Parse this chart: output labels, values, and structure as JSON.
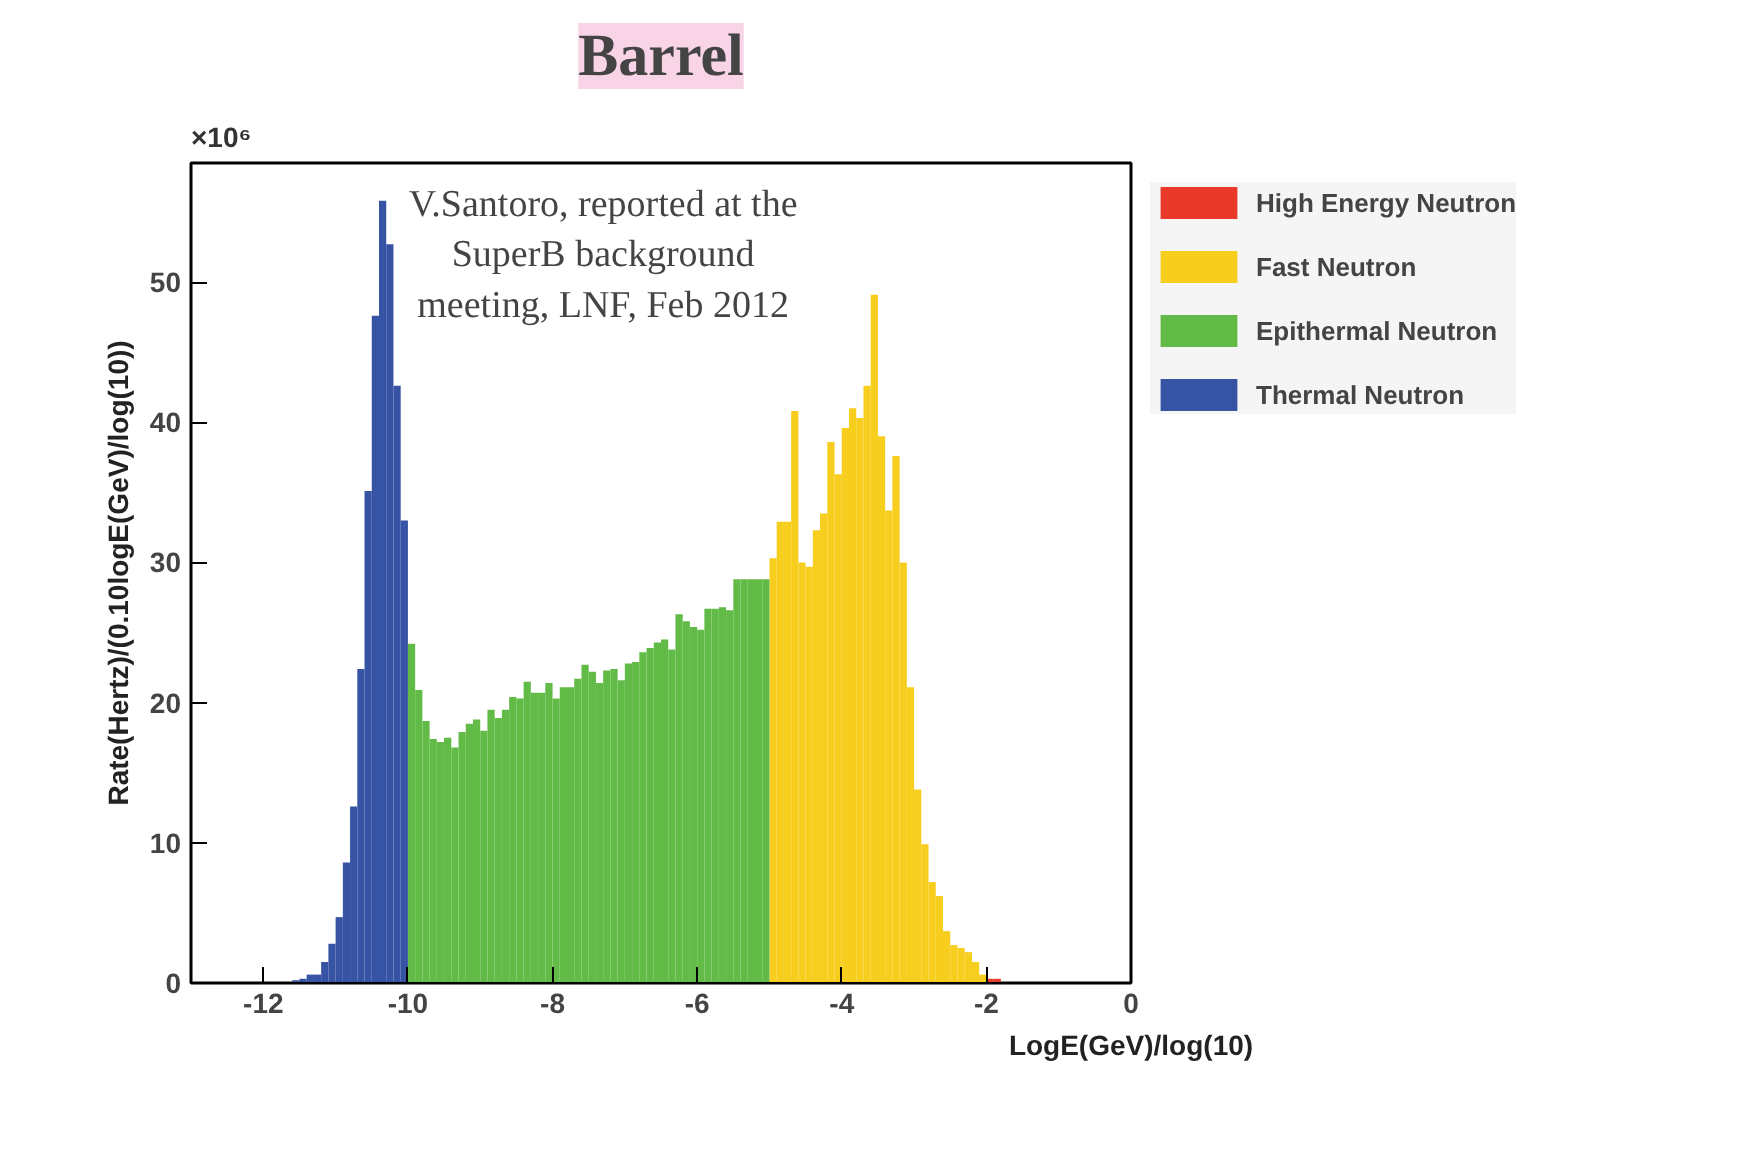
{
  "chart_data": {
    "type": "histogram",
    "title": "Barrel",
    "xlabel": "LogE(GeV)/log(10)",
    "ylabel": "Rate(Hertz)/(0.10logE(GeV)/log(10))",
    "annotations": [
      "×10⁶",
      "V.Santoro, reported at the\nSuperB background\nmeeting, LNF, Feb 2012"
    ],
    "xlim": [
      -13,
      0
    ],
    "ylim": [
      0,
      58.5
    ],
    "xticks": [
      -12,
      -10,
      -8,
      -6,
      -4,
      -2,
      0
    ],
    "yticks": [
      0,
      10,
      20,
      30,
      40,
      50
    ],
    "grid": false,
    "legend": "top right",
    "bins": [
      -13.0,
      -12.9,
      -12.8,
      -12.7,
      -12.6,
      -12.5,
      -12.4,
      -12.3,
      -12.2,
      -12.1,
      -12.0,
      -11.9,
      -11.8,
      -11.7,
      -11.6,
      -11.5,
      -11.4,
      -11.3,
      -11.2,
      -11.1,
      -11.0,
      -10.9,
      -10.8,
      -10.7,
      -10.6,
      -10.5,
      -10.4,
      -10.3,
      -10.2,
      -10.1,
      -10.0,
      -9.9,
      -9.8,
      -9.7,
      -9.6,
      -9.5,
      -9.4,
      -9.3,
      -9.2,
      -9.1,
      -9.0,
      -8.9,
      -8.8,
      -8.7,
      -8.6,
      -8.5,
      -8.4,
      -8.3,
      -8.2,
      -8.1,
      -8.0,
      -7.9,
      -7.8,
      -7.7,
      -7.6,
      -7.5,
      -7.4,
      -7.3,
      -7.2,
      -7.1,
      -7.0,
      -6.9,
      -6.8,
      -6.7,
      -6.6,
      -6.5,
      -6.4,
      -6.3,
      -6.2,
      -6.1,
      -6.0,
      -5.9,
      -5.8,
      -5.7,
      -5.6,
      -5.5,
      -5.4,
      -5.3,
      -5.2,
      -5.1,
      -5.0,
      -4.9,
      -4.8,
      -4.7,
      -4.6,
      -4.5,
      -4.4,
      -4.3,
      -4.2,
      -4.1,
      -4.0,
      -3.9,
      -3.8,
      -3.7,
      -3.6,
      -3.5,
      -3.4,
      -3.3,
      -3.2,
      -3.1,
      -3.0,
      -2.9,
      -2.8,
      -2.7,
      -2.6,
      -2.5,
      -2.4,
      -2.3,
      -2.2,
      -2.1,
      -2.0,
      -1.9,
      -1.8,
      -1.7,
      -1.6,
      -1.5,
      -1.4,
      -1.3,
      -1.2,
      -1.1,
      -1.0,
      -0.9,
      -0.8,
      -0.7,
      -0.6,
      -0.5,
      -0.4,
      -0.3,
      -0.2,
      -0.1,
      0.0
    ],
    "series": [
      {
        "name": "High Energy Neutron",
        "color": "#e8392a",
        "values": [
          null,
          null,
          null,
          null,
          null,
          null,
          null,
          null,
          null,
          null,
          null,
          null,
          null,
          null,
          null,
          null,
          null,
          null,
          null,
          null,
          null,
          null,
          null,
          null,
          null,
          null,
          null,
          null,
          null,
          null,
          null,
          null,
          null,
          null,
          null,
          null,
          null,
          null,
          null,
          null,
          null,
          null,
          null,
          null,
          null,
          null,
          null,
          null,
          null,
          null,
          null,
          null,
          null,
          null,
          null,
          null,
          null,
          null,
          null,
          null,
          null,
          null,
          null,
          null,
          null,
          null,
          null,
          null,
          null,
          null,
          null,
          null,
          null,
          null,
          null,
          null,
          null,
          null,
          null,
          null,
          null,
          null,
          null,
          null,
          null,
          null,
          null,
          null,
          null,
          null,
          null,
          null,
          null,
          null,
          null,
          null,
          null,
          null,
          null,
          null,
          null,
          null,
          null,
          null,
          null,
          null,
          null,
          null,
          null,
          null,
          0.3,
          0.3,
          null,
          null,
          null,
          0,
          0,
          0,
          0,
          0,
          0,
          0,
          0,
          0,
          0,
          0,
          0,
          0,
          0,
          0
        ]
      },
      {
        "name": "Fast Neutron",
        "color": "#f7cd1e",
        "values": [
          null,
          null,
          null,
          null,
          null,
          null,
          null,
          null,
          null,
          null,
          null,
          null,
          null,
          null,
          null,
          null,
          null,
          null,
          null,
          null,
          null,
          null,
          null,
          null,
          null,
          null,
          null,
          null,
          null,
          null,
          null,
          null,
          null,
          null,
          null,
          null,
          null,
          null,
          null,
          null,
          null,
          null,
          null,
          null,
          null,
          null,
          null,
          null,
          null,
          null,
          null,
          null,
          null,
          null,
          null,
          null,
          null,
          null,
          null,
          null,
          null,
          null,
          null,
          null,
          null,
          null,
          null,
          null,
          null,
          null,
          null,
          null,
          null,
          null,
          null,
          null,
          null,
          null,
          null,
          null,
          30.3,
          32.9,
          32.9,
          40.8,
          30.0,
          29.7,
          32.3,
          33.5,
          38.6,
          36.3,
          39.6,
          41.0,
          40.3,
          42.6,
          49.1,
          39.0,
          33.7,
          37.6,
          30.0,
          21.1,
          13.8,
          9.9,
          7.2,
          6.2,
          3.7,
          2.7,
          2.5,
          2.2,
          1.5,
          0.6,
          null,
          null,
          null,
          null,
          null,
          null,
          null,
          null,
          null,
          null,
          null,
          null,
          null,
          null,
          null,
          null,
          null,
          null,
          null,
          null
        ]
      },
      {
        "name": "Epithermal Neutron",
        "color": "#62bb46",
        "values": [
          null,
          null,
          null,
          null,
          null,
          null,
          null,
          null,
          null,
          null,
          null,
          null,
          null,
          null,
          null,
          null,
          null,
          null,
          null,
          null,
          null,
          null,
          null,
          null,
          null,
          null,
          null,
          null,
          null,
          null,
          24.2,
          20.9,
          18.7,
          17.4,
          17.2,
          17.5,
          16.8,
          17.9,
          18.5,
          18.8,
          18.0,
          19.5,
          18.9,
          19.5,
          20.4,
          20.3,
          21.5,
          20.7,
          20.7,
          21.4,
          20.3,
          21.1,
          21.1,
          21.7,
          22.7,
          22.2,
          21.4,
          22.3,
          22.4,
          21.6,
          22.8,
          22.9,
          23.6,
          23.9,
          24.3,
          24.5,
          23.8,
          26.3,
          25.8,
          25.4,
          25.2,
          26.7,
          26.7,
          26.8,
          26.6,
          28.8,
          28.8,
          28.8,
          28.8,
          28.8,
          null,
          null,
          null,
          null,
          null,
          null,
          null,
          null,
          null,
          null,
          null,
          null,
          null,
          null,
          null,
          null,
          null,
          null,
          null,
          null,
          null,
          null,
          null,
          null,
          null,
          null,
          null,
          null,
          null,
          null,
          null,
          null,
          null,
          null,
          null,
          null,
          null,
          null,
          null,
          null,
          null,
          null,
          null,
          null,
          null,
          null,
          null,
          null,
          null,
          null
        ]
      },
      {
        "name": "Thermal Neutron",
        "color": "#3653a4",
        "values": [
          0,
          0,
          0,
          0,
          0,
          0,
          0,
          0,
          0,
          0,
          0,
          0,
          0,
          null,
          0.2,
          0.3,
          0.6,
          0.6,
          1.5,
          2.8,
          4.7,
          8.6,
          12.6,
          22.4,
          35.1,
          47.6,
          55.8,
          52.7,
          42.6,
          33.0,
          null,
          null,
          null,
          null,
          null,
          null,
          null,
          null,
          null,
          null,
          null,
          null,
          null,
          null,
          null,
          null,
          null,
          null,
          null,
          null,
          null,
          null,
          null,
          null,
          null,
          null,
          null,
          null,
          null,
          null,
          null,
          null,
          null,
          null,
          null,
          null,
          null,
          null,
          null,
          null,
          null,
          null,
          null,
          null,
          null,
          null,
          null,
          null,
          null,
          null,
          null,
          null,
          null,
          null,
          null,
          null,
          null,
          null,
          null,
          null,
          null,
          null,
          null,
          null,
          null,
          null,
          null,
          null,
          null,
          null,
          null,
          null,
          null,
          null,
          null,
          null,
          null,
          null,
          null,
          null,
          null,
          null,
          null,
          null,
          null,
          null,
          null,
          null,
          null,
          null,
          null,
          null,
          null,
          null,
          null,
          null,
          null,
          null,
          null,
          null
        ]
      }
    ]
  }
}
